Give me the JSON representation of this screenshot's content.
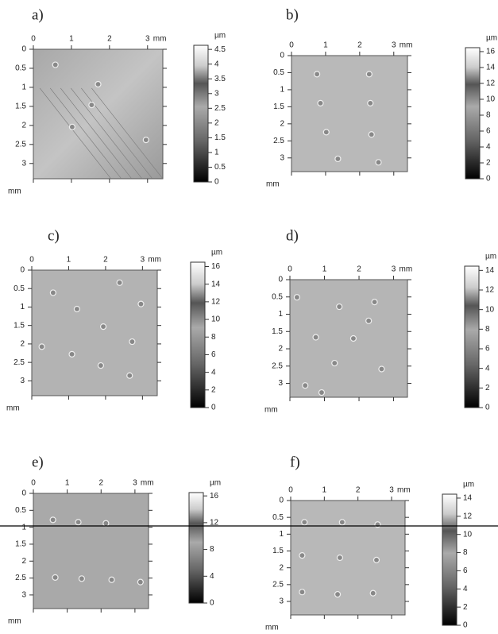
{
  "panels": [
    {
      "label": "a)",
      "x_ticks": [
        0,
        1,
        2,
        3
      ],
      "x_unit": "mm",
      "y_ticks": [
        0,
        0.5,
        1,
        1.5,
        2,
        2.5,
        3
      ],
      "y_unit": "mm",
      "cbar_unit": "µm",
      "cbar_ticks": [
        0,
        0.5,
        1,
        1.5,
        2,
        2.5,
        3,
        3.5,
        4,
        4.5
      ]
    },
    {
      "label": "b)",
      "x_ticks": [
        0,
        1,
        2,
        3
      ],
      "x_unit": "mm",
      "y_ticks": [
        0,
        0.5,
        1,
        1.5,
        2,
        2.5,
        3
      ],
      "y_unit": "mm",
      "cbar_unit": "µm",
      "cbar_ticks": [
        0,
        2,
        4,
        6,
        8,
        10,
        12,
        14,
        16
      ]
    },
    {
      "label": "c)",
      "x_ticks": [
        0,
        1,
        2,
        3
      ],
      "x_unit": "mm",
      "y_ticks": [
        0,
        0.5,
        1,
        1.5,
        2,
        2.5,
        3
      ],
      "y_unit": "mm",
      "cbar_unit": "µm",
      "cbar_ticks": [
        0,
        2,
        4,
        6,
        8,
        10,
        12,
        14,
        16
      ]
    },
    {
      "label": "d)",
      "x_ticks": [
        0,
        1,
        2,
        3
      ],
      "x_unit": "mm",
      "y_ticks": [
        0,
        0.5,
        1,
        1.5,
        2,
        2.5,
        3
      ],
      "y_unit": "mm",
      "cbar_unit": "µm",
      "cbar_ticks": [
        0,
        2,
        4,
        6,
        8,
        10,
        12,
        14
      ]
    },
    {
      "label": "e)",
      "x_ticks": [
        0,
        1,
        2,
        3
      ],
      "x_unit": "mm",
      "y_ticks": [
        0,
        0.5,
        1,
        1.5,
        2,
        2.5,
        3
      ],
      "y_unit": "mm",
      "cbar_unit": "µm",
      "cbar_ticks": [
        0,
        4,
        8,
        12,
        16
      ]
    },
    {
      "label": "f)",
      "x_ticks": [
        0,
        1,
        2,
        3
      ],
      "x_unit": "mm",
      "y_ticks": [
        0,
        0.5,
        1,
        1.5,
        2,
        2.5,
        3
      ],
      "y_unit": "mm",
      "cbar_unit": "µm",
      "cbar_ticks": [
        0,
        2,
        4,
        6,
        8,
        10,
        12,
        14
      ]
    }
  ]
}
